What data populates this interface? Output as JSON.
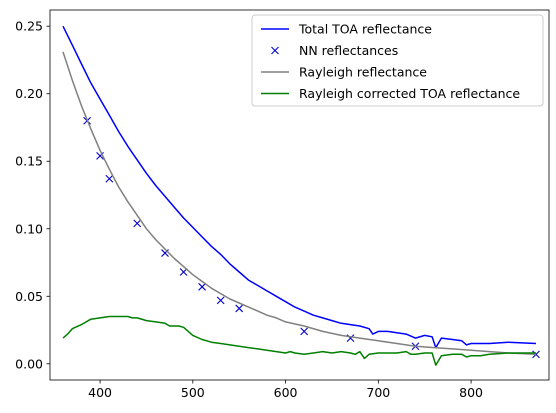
{
  "chart_data": {
    "type": "line",
    "xlim": [
      346,
      884
    ],
    "ylim": [
      -0.012,
      0.262
    ],
    "xticks": [
      400,
      500,
      600,
      700,
      800
    ],
    "yticks": [
      0.0,
      0.05,
      0.1,
      0.15,
      0.2,
      0.25
    ],
    "grid": false,
    "legend_position": "top-right",
    "series": [
      {
        "name": "Total TOA reflectance",
        "kind": "line",
        "color": "#0000ff",
        "points": [
          [
            360,
            0.25
          ],
          [
            370,
            0.236
          ],
          [
            380,
            0.222
          ],
          [
            390,
            0.208
          ],
          [
            400,
            0.196
          ],
          [
            410,
            0.184
          ],
          [
            420,
            0.172
          ],
          [
            430,
            0.161
          ],
          [
            440,
            0.151
          ],
          [
            450,
            0.141
          ],
          [
            460,
            0.132
          ],
          [
            470,
            0.124
          ],
          [
            480,
            0.116
          ],
          [
            490,
            0.108
          ],
          [
            500,
            0.101
          ],
          [
            510,
            0.094
          ],
          [
            520,
            0.087
          ],
          [
            530,
            0.081
          ],
          [
            540,
            0.074
          ],
          [
            550,
            0.068
          ],
          [
            560,
            0.062
          ],
          [
            570,
            0.058
          ],
          [
            580,
            0.054
          ],
          [
            590,
            0.05
          ],
          [
            600,
            0.046
          ],
          [
            610,
            0.042
          ],
          [
            620,
            0.039
          ],
          [
            630,
            0.036
          ],
          [
            640,
            0.034
          ],
          [
            650,
            0.032
          ],
          [
            660,
            0.03
          ],
          [
            670,
            0.029
          ],
          [
            680,
            0.028
          ],
          [
            690,
            0.026
          ],
          [
            694,
            0.022
          ],
          [
            700,
            0.024
          ],
          [
            710,
            0.024
          ],
          [
            720,
            0.023
          ],
          [
            730,
            0.022
          ],
          [
            740,
            0.019
          ],
          [
            750,
            0.021
          ],
          [
            758,
            0.02
          ],
          [
            762,
            0.012
          ],
          [
            768,
            0.019
          ],
          [
            780,
            0.018
          ],
          [
            790,
            0.017
          ],
          [
            795,
            0.014
          ],
          [
            800,
            0.015
          ],
          [
            820,
            0.015
          ],
          [
            840,
            0.016
          ],
          [
            870,
            0.015
          ]
        ]
      },
      {
        "name": "NN reflectances",
        "kind": "marker",
        "color": "#0000cc",
        "points": [
          [
            386,
            0.18
          ],
          [
            400,
            0.154
          ],
          [
            410,
            0.137
          ],
          [
            440,
            0.104
          ],
          [
            470,
            0.082
          ],
          [
            490,
            0.068
          ],
          [
            510,
            0.057
          ],
          [
            530,
            0.047
          ],
          [
            550,
            0.041
          ],
          [
            620,
            0.024
          ],
          [
            670,
            0.019
          ],
          [
            740,
            0.013
          ],
          [
            870,
            0.007
          ]
        ]
      },
      {
        "name": "Rayleigh reflectance",
        "kind": "line",
        "color": "#808080",
        "points": [
          [
            360,
            0.231
          ],
          [
            370,
            0.21
          ],
          [
            380,
            0.191
          ],
          [
            390,
            0.174
          ],
          [
            400,
            0.158
          ],
          [
            410,
            0.144
          ],
          [
            420,
            0.131
          ],
          [
            430,
            0.12
          ],
          [
            440,
            0.11
          ],
          [
            450,
            0.1
          ],
          [
            460,
            0.092
          ],
          [
            470,
            0.085
          ],
          [
            480,
            0.078
          ],
          [
            490,
            0.072
          ],
          [
            500,
            0.066
          ],
          [
            510,
            0.061
          ],
          [
            520,
            0.056
          ],
          [
            530,
            0.052
          ],
          [
            540,
            0.048
          ],
          [
            550,
            0.045
          ],
          [
            560,
            0.042
          ],
          [
            570,
            0.039
          ],
          [
            580,
            0.036
          ],
          [
            590,
            0.034
          ],
          [
            600,
            0.031
          ],
          [
            620,
            0.028
          ],
          [
            640,
            0.024
          ],
          [
            660,
            0.021
          ],
          [
            680,
            0.019
          ],
          [
            700,
            0.017
          ],
          [
            720,
            0.015
          ],
          [
            740,
            0.013
          ],
          [
            760,
            0.012
          ],
          [
            780,
            0.011
          ],
          [
            800,
            0.01
          ],
          [
            820,
            0.009
          ],
          [
            840,
            0.008
          ],
          [
            870,
            0.007
          ]
        ]
      },
      {
        "name": "Rayleigh corrected TOA reflectance",
        "kind": "line",
        "color": "#008000",
        "points": [
          [
            360,
            0.019
          ],
          [
            365,
            0.022
          ],
          [
            370,
            0.026
          ],
          [
            380,
            0.029
          ],
          [
            390,
            0.033
          ],
          [
            400,
            0.034
          ],
          [
            410,
            0.035
          ],
          [
            420,
            0.035
          ],
          [
            430,
            0.035
          ],
          [
            435,
            0.034
          ],
          [
            440,
            0.034
          ],
          [
            450,
            0.032
          ],
          [
            460,
            0.031
          ],
          [
            470,
            0.03
          ],
          [
            475,
            0.028
          ],
          [
            485,
            0.028
          ],
          [
            490,
            0.027
          ],
          [
            500,
            0.021
          ],
          [
            510,
            0.018
          ],
          [
            520,
            0.016
          ],
          [
            530,
            0.015
          ],
          [
            540,
            0.014
          ],
          [
            550,
            0.013
          ],
          [
            560,
            0.012
          ],
          [
            570,
            0.011
          ],
          [
            580,
            0.01
          ],
          [
            590,
            0.009
          ],
          [
            600,
            0.008
          ],
          [
            605,
            0.009
          ],
          [
            610,
            0.008
          ],
          [
            620,
            0.007
          ],
          [
            630,
            0.008
          ],
          [
            640,
            0.009
          ],
          [
            650,
            0.008
          ],
          [
            660,
            0.009
          ],
          [
            670,
            0.008
          ],
          [
            675,
            0.007
          ],
          [
            680,
            0.009
          ],
          [
            685,
            0.004
          ],
          [
            690,
            0.007
          ],
          [
            700,
            0.008
          ],
          [
            710,
            0.008
          ],
          [
            720,
            0.008
          ],
          [
            730,
            0.009
          ],
          [
            735,
            0.007
          ],
          [
            740,
            0.007
          ],
          [
            750,
            0.008
          ],
          [
            758,
            0.008
          ],
          [
            762,
            -0.001
          ],
          [
            768,
            0.006
          ],
          [
            780,
            0.007
          ],
          [
            790,
            0.007
          ],
          [
            795,
            0.005
          ],
          [
            800,
            0.006
          ],
          [
            810,
            0.006
          ],
          [
            820,
            0.007
          ],
          [
            840,
            0.008
          ],
          [
            870,
            0.008
          ]
        ]
      }
    ]
  }
}
